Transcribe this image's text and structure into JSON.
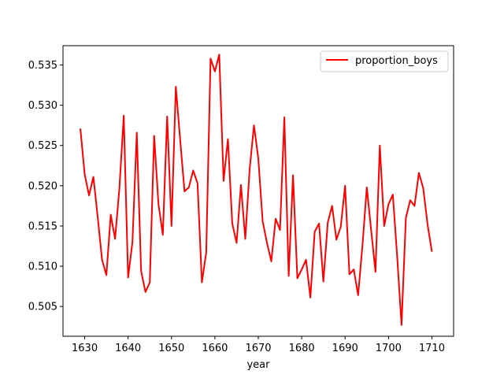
{
  "chart_data": {
    "type": "line",
    "title": "",
    "xlabel": "year",
    "ylabel": "",
    "xlim": [
      1625,
      1715
    ],
    "ylim": [
      0.5013,
      0.5374
    ],
    "xticks": [
      1630,
      1640,
      1650,
      1660,
      1670,
      1680,
      1690,
      1700,
      1710
    ],
    "xtick_labels": [
      "1630",
      "1640",
      "1650",
      "1660",
      "1670",
      "1680",
      "1690",
      "1700",
      "1710"
    ],
    "yticks": [
      0.505,
      0.51,
      0.515,
      0.52,
      0.525,
      0.53,
      0.535
    ],
    "ytick_labels": [
      "0.505",
      "0.510",
      "0.515",
      "0.520",
      "0.525",
      "0.530",
      "0.535"
    ],
    "grid": false,
    "legend_position": "top-right",
    "series": [
      {
        "name": "proportion_boys",
        "color": "#ff0000",
        "x": [
          1629,
          1630,
          1631,
          1632,
          1633,
          1634,
          1635,
          1636,
          1637,
          1638,
          1639,
          1640,
          1641,
          1642,
          1643,
          1644,
          1645,
          1646,
          1647,
          1648,
          1649,
          1650,
          1651,
          1652,
          1653,
          1654,
          1655,
          1656,
          1657,
          1658,
          1659,
          1660,
          1661,
          1662,
          1663,
          1664,
          1665,
          1666,
          1667,
          1668,
          1669,
          1670,
          1671,
          1672,
          1673,
          1674,
          1675,
          1676,
          1677,
          1678,
          1679,
          1680,
          1681,
          1682,
          1683,
          1684,
          1685,
          1686,
          1687,
          1688,
          1689,
          1690,
          1691,
          1692,
          1693,
          1694,
          1695,
          1696,
          1697,
          1698,
          1699,
          1700,
          1701,
          1702,
          1703,
          1704,
          1705,
          1706,
          1707,
          1708,
          1709,
          1710
        ],
        "y": [
          0.5271,
          0.5214,
          0.5188,
          0.5211,
          0.5161,
          0.5108,
          0.5089,
          0.5164,
          0.5134,
          0.5197,
          0.5287,
          0.5086,
          0.513,
          0.5266,
          0.5094,
          0.5068,
          0.508,
          0.5262,
          0.5177,
          0.5139,
          0.5286,
          0.515,
          0.5323,
          0.5257,
          0.5193,
          0.5198,
          0.5219,
          0.5203,
          0.508,
          0.5117,
          0.5358,
          0.5342,
          0.5363,
          0.5206,
          0.5258,
          0.5153,
          0.5129,
          0.5201,
          0.5134,
          0.522,
          0.5275,
          0.5234,
          0.5156,
          0.5129,
          0.5106,
          0.5159,
          0.5145,
          0.5285,
          0.5088,
          0.5213,
          0.5085,
          0.5096,
          0.5108,
          0.5061,
          0.5143,
          0.5153,
          0.5081,
          0.5154,
          0.5175,
          0.5133,
          0.5149,
          0.52,
          0.509,
          0.5096,
          0.5064,
          0.5126,
          0.5198,
          0.5145,
          0.5093,
          0.525,
          0.515,
          0.5177,
          0.5189,
          0.5112,
          0.5027,
          0.516,
          0.5182,
          0.5175,
          0.5216,
          0.5197,
          0.5152,
          0.5118
        ]
      }
    ]
  }
}
